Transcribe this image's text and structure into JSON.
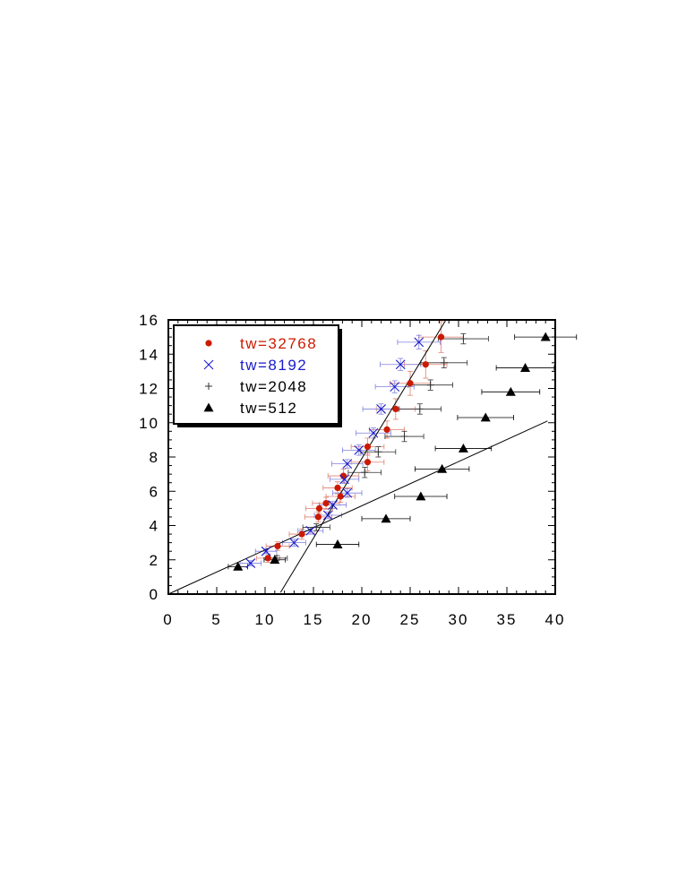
{
  "chart_data": {
    "type": "scatter",
    "title": "",
    "xlabel": "",
    "ylabel": "",
    "xlim": [
      0,
      40
    ],
    "ylim": [
      0,
      16
    ],
    "xticks": [
      0,
      5,
      10,
      15,
      20,
      25,
      30,
      35,
      40
    ],
    "yticks": [
      0,
      2,
      4,
      6,
      8,
      10,
      12,
      14,
      16
    ],
    "grid": false,
    "legend_position": "top-left",
    "series": [
      {
        "name": "tw=32768",
        "marker": "dot",
        "color": "#cc1a00",
        "errcolor": "#e08070",
        "points": [
          {
            "x": 10.3,
            "y": 2.1,
            "xerr": 1.2,
            "yerr": 0.25
          },
          {
            "x": 11.3,
            "y": 2.8,
            "xerr": 1.2,
            "yerr": 0.25
          },
          {
            "x": 13.8,
            "y": 3.5,
            "xerr": 1.3,
            "yerr": 0.3
          },
          {
            "x": 15.5,
            "y": 4.5,
            "xerr": 1.4,
            "yerr": 0.3
          },
          {
            "x": 15.6,
            "y": 5.0,
            "xerr": 1.4,
            "yerr": 0.3
          },
          {
            "x": 16.3,
            "y": 5.3,
            "xerr": 1.4,
            "yerr": 0.35
          },
          {
            "x": 17.8,
            "y": 5.7,
            "xerr": 1.5,
            "yerr": 0.35
          },
          {
            "x": 17.5,
            "y": 6.2,
            "xerr": 1.5,
            "yerr": 0.35
          },
          {
            "x": 18.1,
            "y": 6.9,
            "xerr": 1.6,
            "yerr": 0.4
          },
          {
            "x": 20.6,
            "y": 7.7,
            "xerr": 1.7,
            "yerr": 0.5
          },
          {
            "x": 20.6,
            "y": 8.6,
            "xerr": 1.7,
            "yerr": 0.5
          },
          {
            "x": 22.6,
            "y": 9.6,
            "xerr": 1.8,
            "yerr": 0.5
          },
          {
            "x": 23.5,
            "y": 10.8,
            "xerr": 2.0,
            "yerr": 0.6
          },
          {
            "x": 25.0,
            "y": 12.3,
            "xerr": 2.1,
            "yerr": 0.7
          },
          {
            "x": 26.6,
            "y": 13.4,
            "xerr": 2.2,
            "yerr": 0.8
          },
          {
            "x": 28.2,
            "y": 15.0,
            "xerr": 2.3,
            "yerr": 0.9
          }
        ]
      },
      {
        "name": "tw=8192",
        "marker": "x",
        "color": "#1a1acc",
        "errcolor": "#8080e0",
        "points": [
          {
            "x": 8.5,
            "y": 1.8,
            "xerr": 1.1,
            "yerr": 0.15
          },
          {
            "x": 10.1,
            "y": 2.5,
            "xerr": 1.1,
            "yerr": 0.15
          },
          {
            "x": 13.0,
            "y": 3.0,
            "xerr": 1.2,
            "yerr": 0.2
          },
          {
            "x": 14.7,
            "y": 3.7,
            "xerr": 1.3,
            "yerr": 0.2
          },
          {
            "x": 16.5,
            "y": 4.6,
            "xerr": 1.4,
            "yerr": 0.2
          },
          {
            "x": 17.0,
            "y": 5.2,
            "xerr": 1.4,
            "yerr": 0.2
          },
          {
            "x": 18.5,
            "y": 5.9,
            "xerr": 1.5,
            "yerr": 0.25
          },
          {
            "x": 18.2,
            "y": 6.7,
            "xerr": 1.5,
            "yerr": 0.25
          },
          {
            "x": 18.5,
            "y": 7.6,
            "xerr": 1.6,
            "yerr": 0.25
          },
          {
            "x": 19.7,
            "y": 8.4,
            "xerr": 1.7,
            "yerr": 0.3
          },
          {
            "x": 21.2,
            "y": 9.4,
            "xerr": 1.8,
            "yerr": 0.3
          },
          {
            "x": 22.0,
            "y": 10.8,
            "xerr": 1.9,
            "yerr": 0.3
          },
          {
            "x": 23.4,
            "y": 12.1,
            "xerr": 2.0,
            "yerr": 0.35
          },
          {
            "x": 24.0,
            "y": 13.4,
            "xerr": 2.1,
            "yerr": 0.35
          },
          {
            "x": 25.9,
            "y": 14.7,
            "xerr": 2.2,
            "yerr": 0.4
          }
        ]
      },
      {
        "name": "tw=2048",
        "marker": "plus",
        "color": "#333333",
        "errcolor": "#333333",
        "points": [
          {
            "x": 11.2,
            "y": 2.1,
            "xerr": 1.1,
            "yerr": 0.15
          },
          {
            "x": 15.3,
            "y": 3.9,
            "xerr": 1.4,
            "yerr": 0.2
          },
          {
            "x": 20.3,
            "y": 7.1,
            "xerr": 1.7,
            "yerr": 0.3
          },
          {
            "x": 21.7,
            "y": 8.3,
            "xerr": 1.8,
            "yerr": 0.3
          },
          {
            "x": 24.4,
            "y": 9.2,
            "xerr": 2.0,
            "yerr": 0.3
          },
          {
            "x": 26.0,
            "y": 10.8,
            "xerr": 2.2,
            "yerr": 0.3
          },
          {
            "x": 27.1,
            "y": 12.2,
            "xerr": 2.3,
            "yerr": 0.3
          },
          {
            "x": 28.5,
            "y": 13.5,
            "xerr": 2.4,
            "yerr": 0.3
          },
          {
            "x": 30.5,
            "y": 14.9,
            "xerr": 2.6,
            "yerr": 0.3
          }
        ]
      },
      {
        "name": "tw=512",
        "marker": "triangle",
        "color": "#000000",
        "errcolor": "#000000",
        "points": [
          {
            "x": 7.2,
            "y": 1.6,
            "xerr": 1.0,
            "yerr": 0
          },
          {
            "x": 11.0,
            "y": 2.0,
            "xerr": 1.1,
            "yerr": 0
          },
          {
            "x": 17.5,
            "y": 2.9,
            "xerr": 2.2,
            "yerr": 0
          },
          {
            "x": 22.5,
            "y": 4.4,
            "xerr": 2.5,
            "yerr": 0
          },
          {
            "x": 26.1,
            "y": 5.7,
            "xerr": 2.7,
            "yerr": 0
          },
          {
            "x": 28.3,
            "y": 7.3,
            "xerr": 2.8,
            "yerr": 0
          },
          {
            "x": 30.5,
            "y": 8.5,
            "xerr": 2.9,
            "yerr": 0
          },
          {
            "x": 32.8,
            "y": 10.3,
            "xerr": 2.9,
            "yerr": 0
          },
          {
            "x": 35.4,
            "y": 11.8,
            "xerr": 3.0,
            "yerr": 0
          },
          {
            "x": 36.9,
            "y": 13.2,
            "xerr": 3.0,
            "yerr": 0
          },
          {
            "x": 39.0,
            "y": 15.0,
            "xerr": 3.2,
            "yerr": 0
          }
        ]
      }
    ],
    "fit_lines": [
      {
        "from": [
          0,
          0
        ],
        "to": [
          39.2,
          10.1
        ]
      },
      {
        "from": [
          11.6,
          0.1
        ],
        "to": [
          28.7,
          16.0
        ]
      }
    ]
  }
}
